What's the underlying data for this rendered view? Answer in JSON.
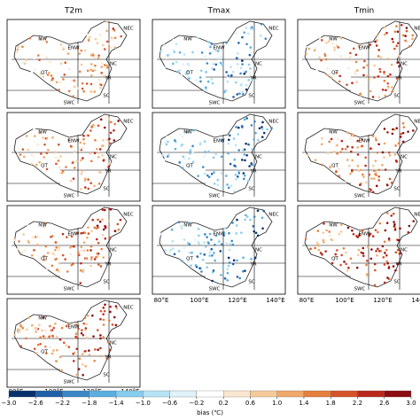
{
  "columns": [
    "T2m",
    "Tmax",
    "Tmin"
  ],
  "regions": [
    "NW",
    "NEC",
    "ENW",
    "NC",
    "QT",
    "YR",
    "SWC",
    "SC"
  ],
  "lon_labels": [
    "80°E",
    "100°E",
    "120°E",
    "140°E"
  ],
  "colorbar": {
    "ticks": [
      "−3.0",
      "−2.6",
      "−2.2",
      "−1.8",
      "−1.4",
      "−1.0",
      "−0.6",
      "−0.2",
      "0.2",
      "0.6",
      "1.0",
      "1.4",
      "1.8",
      "2.2",
      "2.6",
      "3.0"
    ],
    "label": "bias (℃)",
    "colors": [
      "#08306b",
      "#1f5fa8",
      "#3a87c7",
      "#5aaee0",
      "#86cdef",
      "#b5e2f5",
      "#dff2f9",
      "#ffffff",
      "#fbe6cf",
      "#f6c99a",
      "#f0a868",
      "#e67f3e",
      "#d6532a",
      "#b8271c",
      "#8c0d12"
    ]
  }
}
